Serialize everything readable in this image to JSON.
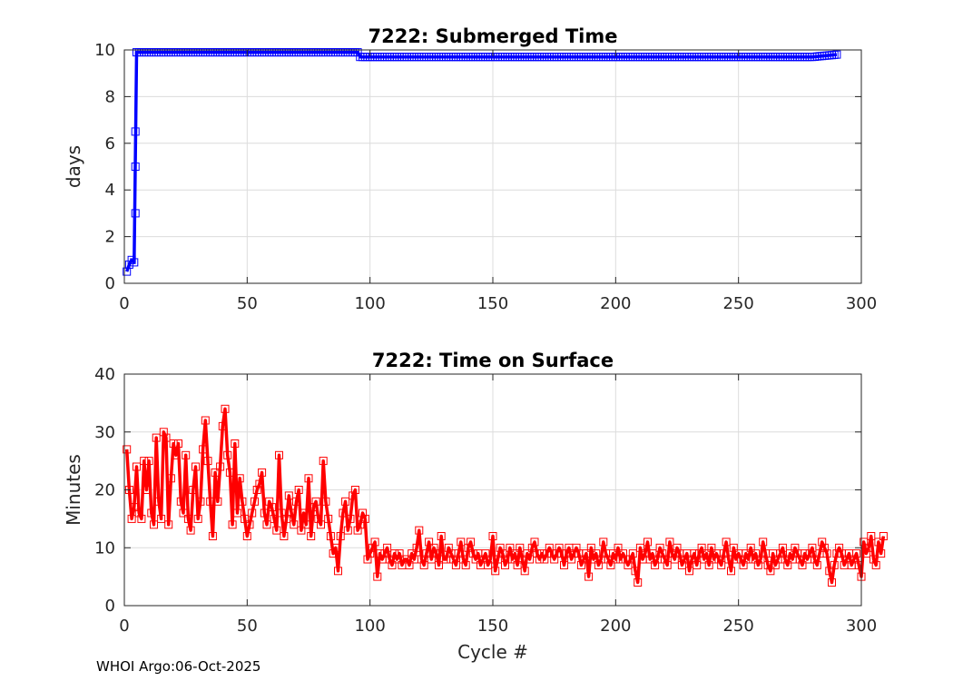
{
  "footer": "WHOI Argo:06-Oct-2025",
  "chart_data": [
    {
      "type": "line",
      "title": "7222: Submerged Time",
      "xlabel": "",
      "ylabel": "days",
      "xlim": [
        0,
        300
      ],
      "ylim": [
        0,
        10
      ],
      "xticks": [
        0,
        50,
        100,
        150,
        200,
        250,
        300
      ],
      "yticks": [
        0,
        2,
        4,
        6,
        8,
        10
      ],
      "grid": true,
      "color": "#0000ff",
      "marker": "square",
      "series": [
        {
          "x": [
            1,
            2,
            3,
            4,
            5,
            6,
            10,
            20,
            30,
            40,
            50,
            60,
            70,
            80,
            90,
            95,
            96,
            100,
            110,
            150,
            200,
            240,
            250,
            280,
            290
          ],
          "values": [
            0.5,
            0.8,
            1.0,
            0.9,
            9.9,
            9.9,
            9.9,
            9.9,
            9.9,
            9.9,
            9.9,
            9.9,
            9.9,
            9.9,
            9.9,
            9.9,
            9.7,
            9.7,
            9.7,
            9.7,
            9.7,
            9.7,
            9.7,
            9.7,
            9.8
          ]
        }
      ]
    },
    {
      "type": "line",
      "title": "7222: Time on Surface",
      "xlabel": "Cycle #",
      "ylabel": "Minutes",
      "xlim": [
        0,
        300
      ],
      "ylim": [
        0,
        40
      ],
      "xticks": [
        0,
        50,
        100,
        150,
        200,
        250,
        300
      ],
      "yticks": [
        0,
        10,
        20,
        30,
        40
      ],
      "grid": true,
      "color": "#ff0000",
      "marker": "square",
      "series": [
        {
          "x_start": 1,
          "values": [
            27,
            20,
            15,
            17,
            24,
            16,
            15,
            25,
            20,
            25,
            16,
            14,
            29,
            18,
            15,
            30,
            29,
            14,
            22,
            28,
            26,
            28,
            18,
            16,
            26,
            15,
            13,
            20,
            24,
            15,
            18,
            27,
            32,
            25,
            18,
            12,
            23,
            18,
            24,
            31,
            34,
            26,
            23,
            14,
            28,
            16,
            22,
            18,
            15,
            12,
            14,
            16,
            18,
            20,
            21,
            23,
            16,
            14,
            18,
            17,
            15,
            13,
            26,
            16,
            12,
            15,
            19,
            16,
            14,
            18,
            20,
            13,
            16,
            14,
            22,
            12,
            17,
            18,
            15,
            14,
            25,
            18,
            15,
            12,
            9,
            10,
            6,
            12,
            16,
            18,
            13,
            15,
            19,
            20,
            13,
            14,
            16,
            15,
            8,
            9,
            10,
            11,
            5,
            9,
            8,
            9,
            10,
            8,
            7,
            9,
            8,
            9,
            7,
            8,
            8,
            7,
            9,
            8,
            10,
            13,
            8,
            7,
            9,
            11,
            8,
            10,
            9,
            7,
            12,
            8,
            8,
            10,
            9,
            8,
            7,
            9,
            11,
            8,
            7,
            10,
            11,
            9,
            8,
            9,
            7,
            8,
            9,
            7,
            8,
            12,
            6,
            8,
            10,
            9,
            7,
            8,
            10,
            8,
            9,
            7,
            10,
            8,
            6,
            9,
            8,
            10,
            11,
            9,
            8,
            9,
            8,
            9,
            10,
            9,
            8,
            9,
            10,
            9,
            7,
            9,
            10,
            8,
            9,
            10,
            9,
            7,
            8,
            9,
            5,
            10,
            8,
            9,
            7,
            8,
            11,
            9,
            8,
            7,
            9,
            8,
            10,
            8,
            9,
            8,
            7,
            8,
            9,
            6,
            4,
            10,
            8,
            9,
            11,
            8,
            9,
            7,
            8,
            10,
            9,
            8,
            7,
            11,
            9,
            8,
            10,
            9,
            7,
            8,
            9,
            6,
            8,
            9,
            7,
            9,
            10,
            8,
            9,
            7,
            10,
            8,
            9,
            8,
            7,
            9,
            11,
            8,
            6,
            10,
            8,
            9,
            8,
            7,
            9,
            8,
            10,
            8,
            9,
            7,
            8,
            11,
            9,
            7,
            6,
            9,
            7,
            8,
            9,
            10,
            8,
            7,
            9,
            8,
            10,
            9,
            8,
            7,
            9,
            8,
            9,
            10,
            8,
            7,
            9,
            11,
            10,
            9,
            6,
            4,
            7,
            9,
            10,
            9,
            7,
            8,
            9,
            7,
            8,
            9,
            7,
            5,
            11,
            9,
            10,
            12,
            8,
            7,
            11,
            9,
            12
          ]
        }
      ]
    }
  ]
}
